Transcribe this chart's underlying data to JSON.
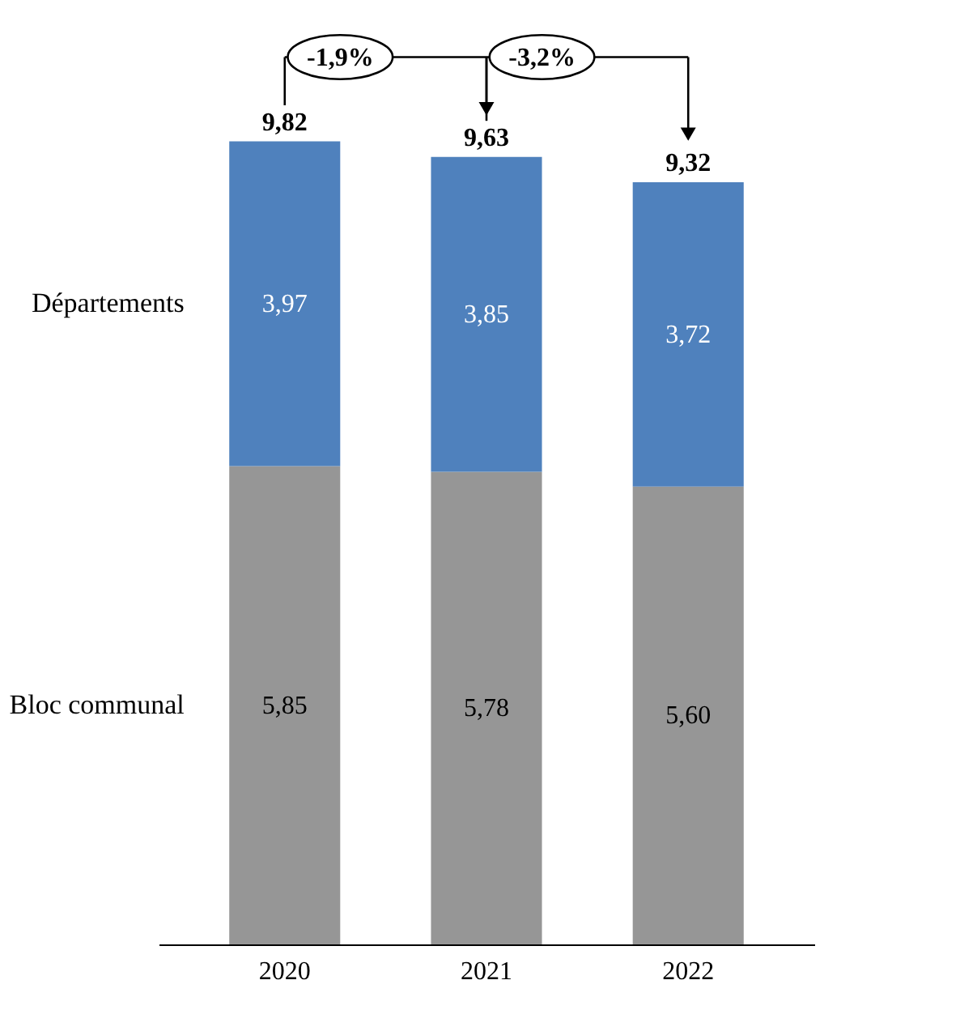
{
  "chart_data": {
    "type": "bar",
    "stacked": true,
    "categories": [
      "2020",
      "2021",
      "2022"
    ],
    "series": [
      {
        "name": "Bloc communal",
        "color": "#969696",
        "values": [
          5.85,
          5.78,
          5.6
        ],
        "value_labels": [
          "5,85",
          "5,78",
          "5,60"
        ]
      },
      {
        "name": "Départements",
        "color": "#4f81bd",
        "values": [
          3.97,
          3.85,
          3.72
        ],
        "value_labels": [
          "3,97",
          "3,85",
          "3,72"
        ]
      }
    ],
    "totals": [
      "9,82",
      "9,63",
      "9,32"
    ],
    "annotations": [
      "-1,9%",
      "-3,2%"
    ],
    "tick_labels": "x"
  }
}
